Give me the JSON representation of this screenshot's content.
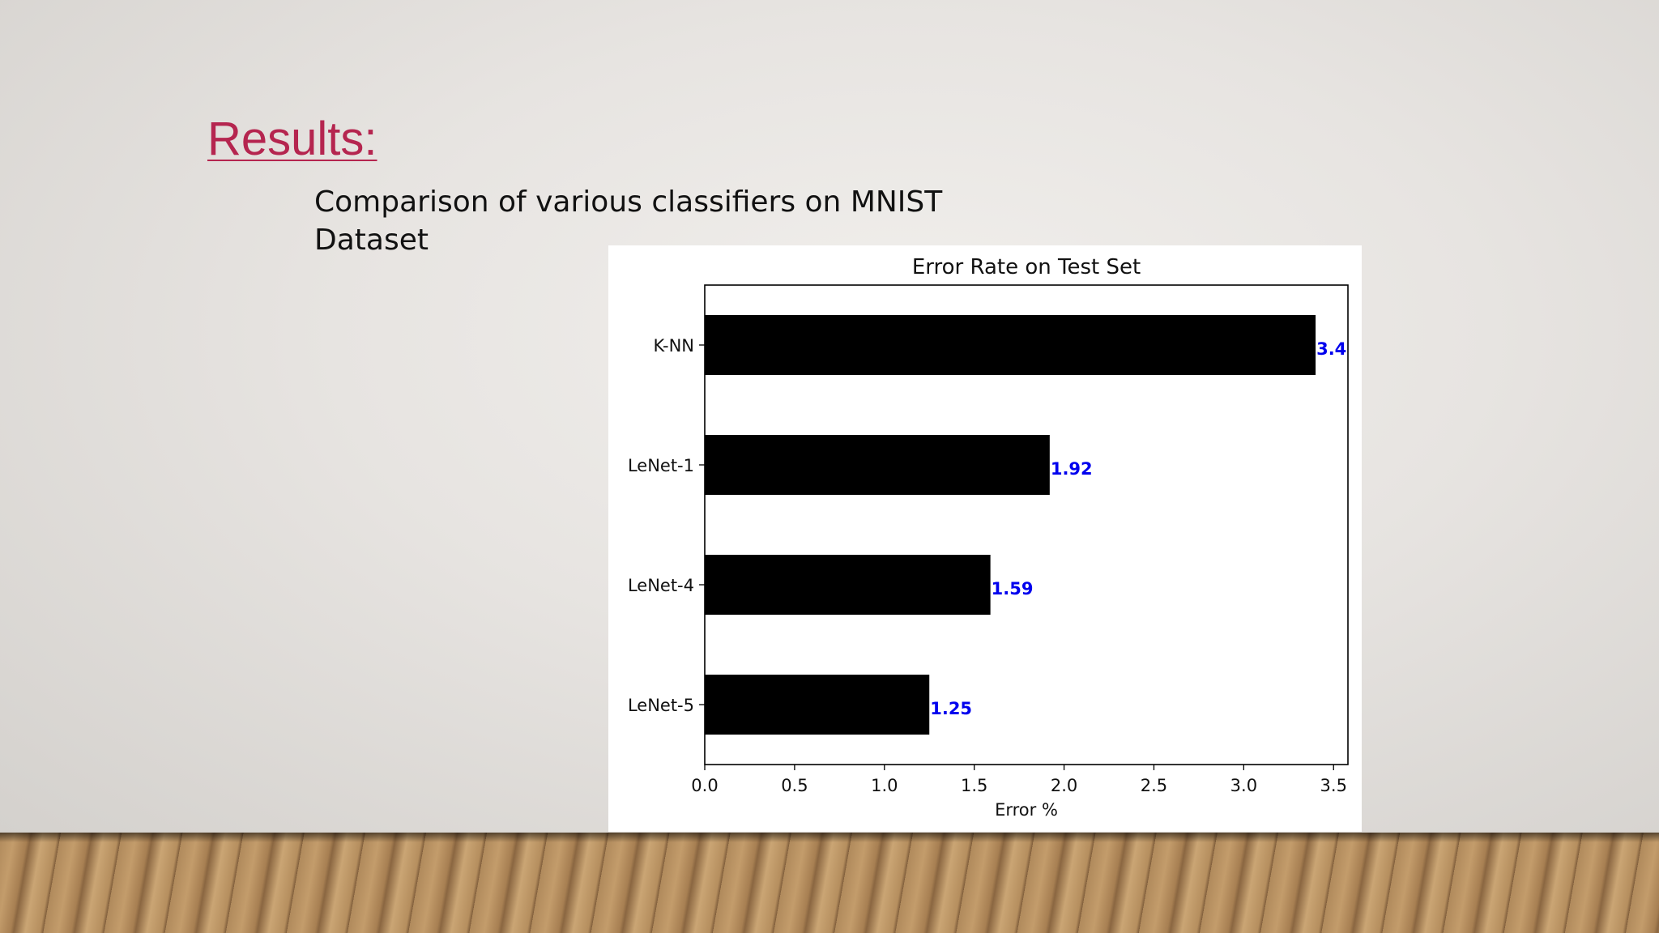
{
  "slide": {
    "title": "Results:",
    "subtitle": "Comparison of various classifiers on MNIST Dataset"
  },
  "colors": {
    "title": "#b5254f",
    "bar": "#000000",
    "data_label": "#0000ee"
  },
  "chart_data": {
    "type": "bar",
    "orientation": "horizontal",
    "title": "Error Rate on Test Set",
    "xlabel": "Error %",
    "ylabel": "",
    "categories": [
      "K-NN",
      "LeNet-1",
      "LeNet-4",
      "LeNet-5"
    ],
    "values": [
      3.4,
      1.92,
      1.59,
      1.25
    ],
    "data_labels": [
      "3.4",
      "1.92",
      "1.59",
      "1.25"
    ],
    "xlim": [
      0,
      3.58
    ],
    "xticks": [
      0.0,
      0.5,
      1.0,
      1.5,
      2.0,
      2.5,
      3.0,
      3.5
    ],
    "xtick_labels": [
      "0.0",
      "0.5",
      "1.0",
      "1.5",
      "2.0",
      "2.5",
      "3.0",
      "3.5"
    ],
    "grid": false,
    "legend": "none"
  }
}
